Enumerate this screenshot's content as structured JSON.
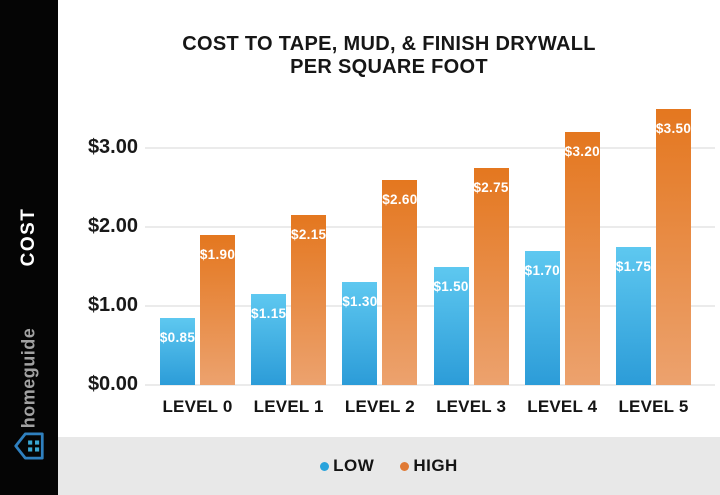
{
  "sidebar": {
    "axis_label": "COST",
    "brand": "homeguide",
    "logo_icon": "house-grid-icon",
    "logo_color": "#2f80bf"
  },
  "chart_data": {
    "type": "bar",
    "title": "COST TO TAPE, MUD, & FINISH DRYWALL PER SQUARE FOOT",
    "title_lines": {
      "line1": "COST TO TAPE, MUD, & FINISH DRYWALL",
      "line2": "PER SQUARE FOOT"
    },
    "xlabel": "",
    "ylabel": "COST",
    "ylim": [
      0,
      3.5
    ],
    "grid": true,
    "legend_position": "bottom",
    "y_ticks": [
      "$0.00",
      "$1.00",
      "$2.00",
      "$3.00"
    ],
    "categories": [
      "LEVEL 0",
      "LEVEL 1",
      "LEVEL 2",
      "LEVEL 3",
      "LEVEL 4",
      "LEVEL 5"
    ],
    "series": [
      {
        "name": "LOW",
        "values": [
          0.85,
          1.15,
          1.3,
          1.5,
          1.7,
          1.75
        ],
        "labels": [
          "$0.85",
          "$1.15",
          "$1.30",
          "$1.50",
          "$1.70",
          "$1.75"
        ],
        "color_top": "#5ec8f0",
        "color_bottom": "#2c9cd8"
      },
      {
        "name": "HIGH",
        "values": [
          1.9,
          2.15,
          2.6,
          2.75,
          3.2,
          3.5
        ],
        "labels": [
          "$1.90",
          "$2.15",
          "$2.60",
          "$2.75",
          "$3.20",
          "$3.50"
        ],
        "color_top": "#e4771f",
        "color_bottom": "#eca26e"
      }
    ]
  },
  "legend": {
    "items": [
      {
        "label": "LOW",
        "color": "#29a3dc"
      },
      {
        "label": "HIGH",
        "color": "#e07a35"
      }
    ]
  }
}
